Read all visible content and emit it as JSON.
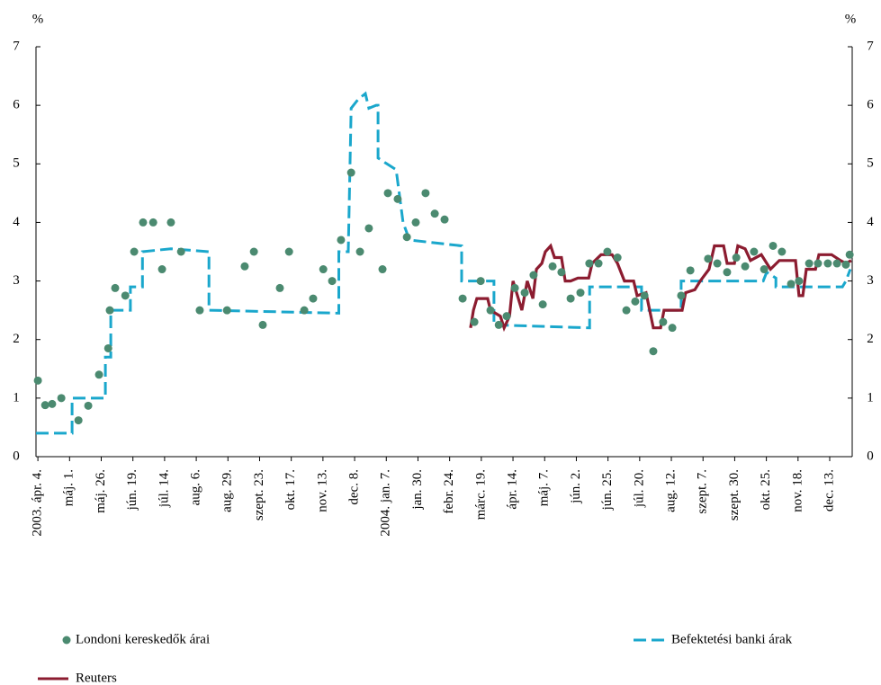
{
  "chart_data": {
    "type": "line",
    "y_label": "%",
    "y2_label": "%",
    "categories": [
      "2003. ápr. 4.",
      "máj. 1.",
      "máj. 26.",
      "jún. 19.",
      "júl. 14.",
      "aug. 6.",
      "aug. 29.",
      "szept. 23.",
      "okt. 17.",
      "nov. 13.",
      "dec. 8.",
      "2004. jan. 7.",
      "jan. 30.",
      "febr. 24.",
      "márc. 19.",
      "ápr. 14.",
      "máj. 7.",
      "jún. 2.",
      "jún. 25.",
      "júl. 20.",
      "aug. 12.",
      "szept. 7.",
      "szept. 30.",
      "okt. 25.",
      "nov. 18.",
      "dec. 13."
    ],
    "xlim": [
      -0.06,
      25.71
    ],
    "ylim": [
      0,
      7
    ],
    "yticks": [
      0,
      1,
      2,
      3,
      4,
      5,
      6,
      7
    ],
    "y2lim": [
      0,
      7
    ],
    "y2ticks": [
      0,
      1,
      2,
      3,
      4,
      5,
      6,
      7
    ],
    "series": [
      {
        "name": "Londoni kereskedők árai",
        "type": "scatter",
        "color": "#4b8a70",
        "x": [
          0,
          0.23,
          0.45,
          0.74,
          1.28,
          1.59,
          1.93,
          2.22,
          2.27,
          2.44,
          2.76,
          3.04,
          3.32,
          3.64,
          3.92,
          4.2,
          4.52,
          5.11,
          5.97,
          6.53,
          6.82,
          7.1,
          7.64,
          7.93,
          8.41,
          8.69,
          9.01,
          9.29,
          9.57,
          9.89,
          10.17,
          10.45,
          10.88,
          11.05,
          11.36,
          11.65,
          11.93,
          12.24,
          12.53,
          12.84,
          13.41,
          13.78,
          13.98,
          14.29,
          14.55,
          14.8,
          15.06,
          15.37,
          15.65,
          15.94,
          16.25,
          16.53,
          16.82,
          17.13,
          17.41,
          17.7,
          17.98,
          18.3,
          18.58,
          18.86,
          19.15,
          19.43,
          19.74,
          20.03,
          20.31,
          20.6,
          21.16,
          21.45,
          21.76,
          22.05,
          22.33,
          22.61,
          22.93,
          23.21,
          23.49,
          23.78,
          24.03,
          24.35,
          24.63,
          24.94,
          25.23,
          25.51,
          25.63
        ],
        "values": [
          1.3,
          0.88,
          0.9,
          1.0,
          0.62,
          0.87,
          1.4,
          1.85,
          2.5,
          2.88,
          2.75,
          3.5,
          4.0,
          4.0,
          3.2,
          4.0,
          3.5,
          2.5,
          2.5,
          3.25,
          3.5,
          2.25,
          2.88,
          3.5,
          2.5,
          2.7,
          3.2,
          3.0,
          3.7,
          4.85,
          3.5,
          3.9,
          3.2,
          4.5,
          4.4,
          3.75,
          4.0,
          4.5,
          4.15,
          4.05,
          2.7,
          2.3,
          3.0,
          2.5,
          2.25,
          2.4,
          2.88,
          2.8,
          3.1,
          2.6,
          3.25,
          3.15,
          2.7,
          2.8,
          3.3,
          3.3,
          3.5,
          3.4,
          2.5,
          2.65,
          2.75,
          1.8,
          2.3,
          2.2,
          2.75,
          3.18,
          3.38,
          3.3,
          3.15,
          3.4,
          3.25,
          3.5,
          3.2,
          3.6,
          3.5,
          2.95,
          3.0,
          3.3,
          3.3,
          3.3,
          3.3,
          3.28,
          3.45
        ]
      },
      {
        "name": "Befektetési banki árak",
        "type": "line",
        "style": "dashed",
        "color": "#1aa7cc",
        "x": [
          -0.06,
          1.08,
          1.08,
          2.13,
          2.13,
          2.3,
          2.3,
          2.92,
          2.92,
          3.3,
          3.3,
          4.2,
          5.4,
          5.4,
          9.5,
          9.5,
          9.8,
          9.89,
          10.11,
          10.34,
          10.45,
          10.68,
          10.74,
          10.74,
          11.02,
          11.31,
          11.53,
          11.73,
          13.38,
          13.38,
          14.4,
          14.4,
          17.42,
          17.42,
          19.06,
          19.06,
          20.31,
          20.31,
          22.9,
          23.01,
          23.3,
          23.3,
          25.4,
          25.51,
          25.65
        ],
        "values": [
          0.4,
          0.4,
          1.0,
          1.0,
          1.7,
          1.7,
          2.5,
          2.5,
          2.9,
          2.9,
          3.5,
          3.55,
          3.5,
          2.5,
          2.45,
          3.5,
          3.5,
          5.95,
          6.1,
          6.2,
          5.95,
          6.0,
          6.0,
          5.1,
          5.0,
          4.9,
          4.0,
          3.7,
          3.6,
          3.0,
          3.0,
          2.25,
          2.2,
          2.9,
          2.9,
          2.5,
          2.5,
          3.0,
          3.0,
          3.15,
          3.05,
          2.9,
          2.9,
          3.0,
          3.2
        ]
      },
      {
        "name": "Reuters",
        "type": "line",
        "style": "solid",
        "color": "#8c1c30",
        "x": [
          13.66,
          13.75,
          13.86,
          14.2,
          14.29,
          14.6,
          14.72,
          14.89,
          15.0,
          15.17,
          15.28,
          15.45,
          15.63,
          15.74,
          15.91,
          16.02,
          16.19,
          16.31,
          16.53,
          16.65,
          16.82,
          17.05,
          17.39,
          17.5,
          17.78,
          18.13,
          18.3,
          18.52,
          18.81,
          18.92,
          19.2,
          19.43,
          19.66,
          19.77,
          20.34,
          20.45,
          20.74,
          20.91,
          21.19,
          21.36,
          21.65,
          21.76,
          21.99,
          22.1,
          22.33,
          22.5,
          22.84,
          23.13,
          23.41,
          23.92,
          24.03,
          24.15,
          24.26,
          24.55,
          24.66,
          25.06,
          25.34,
          25.51,
          25.68
        ],
        "values": [
          2.2,
          2.5,
          2.7,
          2.7,
          2.5,
          2.4,
          2.2,
          2.4,
          3.0,
          2.7,
          2.5,
          3.0,
          2.7,
          3.2,
          3.3,
          3.5,
          3.6,
          3.4,
          3.4,
          3.0,
          3.0,
          3.05,
          3.05,
          3.3,
          3.45,
          3.45,
          3.3,
          3.0,
          3.0,
          2.75,
          2.8,
          2.2,
          2.2,
          2.5,
          2.5,
          2.8,
          2.85,
          3.0,
          3.2,
          3.6,
          3.6,
          3.3,
          3.3,
          3.6,
          3.55,
          3.35,
          3.45,
          3.2,
          3.35,
          3.35,
          2.75,
          2.75,
          3.2,
          3.2,
          3.45,
          3.45,
          3.35,
          3.3,
          3.35
        ]
      }
    ]
  }
}
